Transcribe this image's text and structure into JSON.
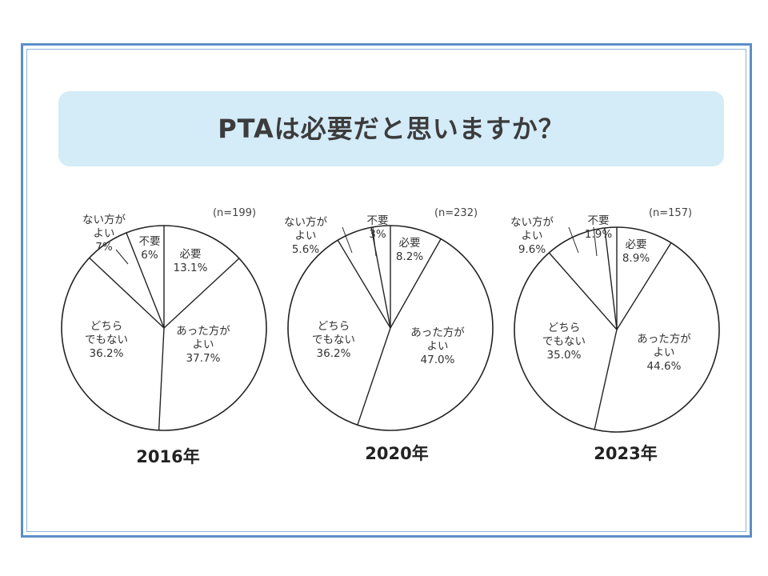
{
  "title": "PTAは必要だと思いますか？",
  "chart_data": [
    {
      "type": "pie",
      "year_label": "2016年",
      "n_label": "(n=199)",
      "slices": [
        {
          "label": "必要",
          "value": 13.1,
          "value_label": "13.1%"
        },
        {
          "label": "あった方がよい",
          "value": 37.7,
          "value_label": "37.7%"
        },
        {
          "label": "どちらでもない",
          "value": 36.2,
          "value_label": "36.2%"
        },
        {
          "label": "ない方がよい",
          "value": 7,
          "value_label": "7%"
        },
        {
          "label": "不要",
          "value": 6,
          "value_label": "6%"
        }
      ]
    },
    {
      "type": "pie",
      "year_label": "2020年",
      "n_label": "(n=232)",
      "slices": [
        {
          "label": "必要",
          "value": 8.2,
          "value_label": "8.2%"
        },
        {
          "label": "あった方がよい",
          "value": 47.0,
          "value_label": "47.0%"
        },
        {
          "label": "どちらでもない",
          "value": 36.2,
          "value_label": "36.2%"
        },
        {
          "label": "ない方がよい",
          "value": 5.6,
          "value_label": "5.6%"
        },
        {
          "label": "不要",
          "value": 3,
          "value_label": "3%"
        }
      ]
    },
    {
      "type": "pie",
      "year_label": "2023年",
      "n_label": "(n=157)",
      "slices": [
        {
          "label": "必要",
          "value": 8.9,
          "value_label": "8.9%"
        },
        {
          "label": "あった方がよい",
          "value": 44.6,
          "value_label": "44.6%"
        },
        {
          "label": "どちらでもない",
          "value": 35.0,
          "value_label": "35.0%"
        },
        {
          "label": "ない方がよい",
          "value": 9.6,
          "value_label": "9.6%"
        },
        {
          "label": "不要",
          "value": 1.9,
          "value_label": "1.9%"
        }
      ]
    }
  ]
}
